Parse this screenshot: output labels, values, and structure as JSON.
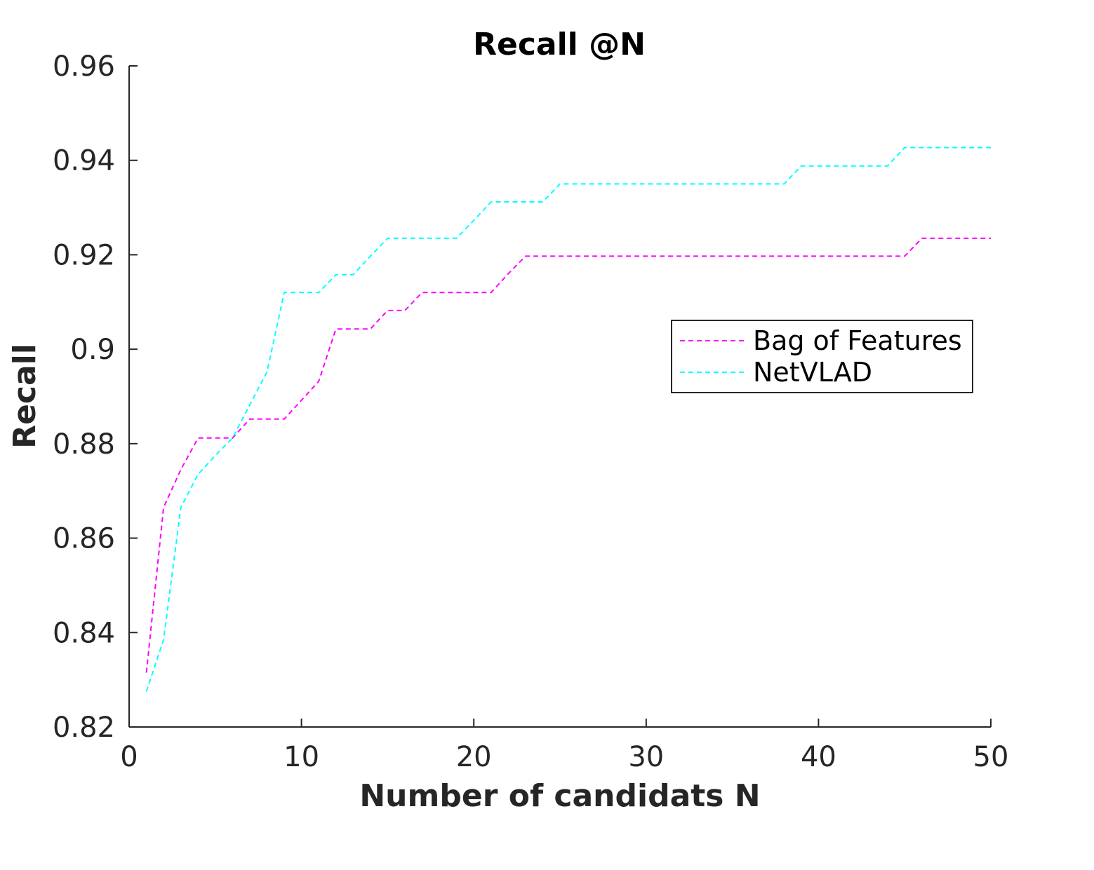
{
  "chart_data": {
    "type": "line",
    "title": "Recall @N",
    "xlabel": "Number of candidats N",
    "ylabel": "Recall",
    "xlim": [
      0,
      50
    ],
    "ylim": [
      0.82,
      0.96
    ],
    "xticks": [
      0,
      10,
      20,
      30,
      40,
      50
    ],
    "xtick_labels": [
      "0",
      "10",
      "20",
      "30",
      "40",
      "50"
    ],
    "yticks": [
      0.82,
      0.84,
      0.86,
      0.88,
      0.9,
      0.92,
      0.94,
      0.96
    ],
    "ytick_labels": [
      "0.82",
      "0.84",
      "0.86",
      "0.88",
      "0.9",
      "0.92",
      "0.94",
      "0.96"
    ],
    "grid": false,
    "legend_position": "right",
    "x": [
      1,
      2,
      3,
      4,
      5,
      6,
      7,
      8,
      9,
      10,
      11,
      12,
      13,
      14,
      15,
      16,
      17,
      18,
      19,
      20,
      21,
      22,
      23,
      24,
      25,
      26,
      27,
      28,
      29,
      30,
      31,
      32,
      33,
      34,
      35,
      36,
      37,
      38,
      39,
      40,
      41,
      42,
      43,
      44,
      45,
      46,
      47,
      48,
      49,
      50
    ],
    "series": [
      {
        "name": "Bag of Features",
        "color": "#ff00ff",
        "values": [
          0.8315,
          0.8665,
          0.8745,
          0.8812,
          0.8812,
          0.8812,
          0.8852,
          0.8852,
          0.8852,
          0.8892,
          0.8932,
          0.9043,
          0.9043,
          0.9043,
          0.9082,
          0.9082,
          0.912,
          0.912,
          0.912,
          0.912,
          0.912,
          0.916,
          0.9197,
          0.9197,
          0.9197,
          0.9197,
          0.9197,
          0.9197,
          0.9197,
          0.9197,
          0.9197,
          0.9197,
          0.9197,
          0.9197,
          0.9197,
          0.9197,
          0.9197,
          0.9197,
          0.9197,
          0.9197,
          0.9197,
          0.9197,
          0.9197,
          0.9197,
          0.9197,
          0.9235,
          0.9235,
          0.9235,
          0.9235,
          0.9235
        ]
      },
      {
        "name": "NetVLAD",
        "color": "#00ffff",
        "values": [
          0.8275,
          0.8385,
          0.8665,
          0.8735,
          0.8775,
          0.8812,
          0.8882,
          0.8952,
          0.912,
          0.912,
          0.912,
          0.9158,
          0.9158,
          0.9197,
          0.9235,
          0.9235,
          0.9235,
          0.9235,
          0.9235,
          0.9273,
          0.9312,
          0.9312,
          0.9312,
          0.9312,
          0.935,
          0.935,
          0.935,
          0.935,
          0.935,
          0.935,
          0.935,
          0.935,
          0.935,
          0.935,
          0.935,
          0.935,
          0.935,
          0.935,
          0.9388,
          0.9388,
          0.9388,
          0.9388,
          0.9388,
          0.9388,
          0.9427,
          0.9427,
          0.9427,
          0.9427,
          0.9427,
          0.9427
        ]
      }
    ]
  }
}
